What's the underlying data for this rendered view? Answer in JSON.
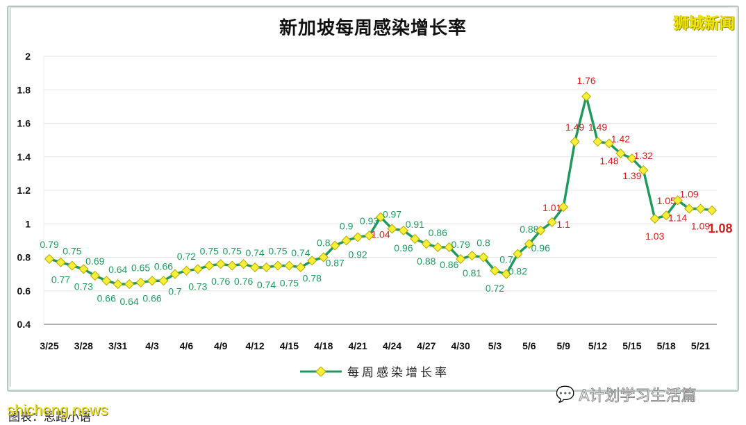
{
  "title": "新加坡每周感染增长率",
  "brand_watermark": "狮城新闻",
  "legend_label": "每周感染增长率",
  "caption": "图表：思路小语",
  "site_watermark": "shicheng.news",
  "wechat_watermark": "A计划学习生活篇",
  "colors": {
    "line": "#1f9a5e",
    "marker": "#f5ef3a",
    "label_low": "#1f9a5e",
    "label_high": "#d81b1b"
  },
  "chart_data": {
    "type": "line",
    "title": "新加坡每周感染增长率",
    "xlabel": "",
    "ylabel": "",
    "ylim": [
      0.4,
      2
    ],
    "yticks": [
      0.4,
      0.6,
      0.8,
      1,
      1.2,
      1.4,
      1.6,
      1.8,
      2
    ],
    "ytick_labels": [
      "0.4",
      "0.6",
      "0.8",
      "1",
      "1.2",
      "1.4",
      "1.6",
      "1.8",
      "2"
    ],
    "xtick_labels": [
      "3/25",
      "3/28",
      "3/31",
      "4/3",
      "4/6",
      "4/9",
      "4/12",
      "4/15",
      "4/18",
      "4/21",
      "4/24",
      "4/27",
      "4/30",
      "5/3",
      "5/6",
      "5/9",
      "5/12",
      "5/15",
      "5/18",
      "5/21"
    ],
    "grid": true,
    "legend_position": "bottom",
    "series": [
      {
        "name": "每周感染增长率",
        "start_date": "3/25",
        "end_date": "5/22",
        "values": [
          0.79,
          0.77,
          0.75,
          0.73,
          0.69,
          0.66,
          0.64,
          0.64,
          0.65,
          0.66,
          0.66,
          0.7,
          0.72,
          0.73,
          0.75,
          0.76,
          0.75,
          0.76,
          0.74,
          0.74,
          0.75,
          0.75,
          0.74,
          0.78,
          0.8,
          0.87,
          0.9,
          0.92,
          0.93,
          1.04,
          0.97,
          0.96,
          0.91,
          0.88,
          0.86,
          0.86,
          0.79,
          0.81,
          0.8,
          0.72,
          0.7,
          0.82,
          0.88,
          0.96,
          1.01,
          1.1,
          1.49,
          1.76,
          1.49,
          1.48,
          1.42,
          1.39,
          1.32,
          1.03,
          1.05,
          1.14,
          1.09,
          1.09,
          1.08
        ]
      }
    ]
  }
}
